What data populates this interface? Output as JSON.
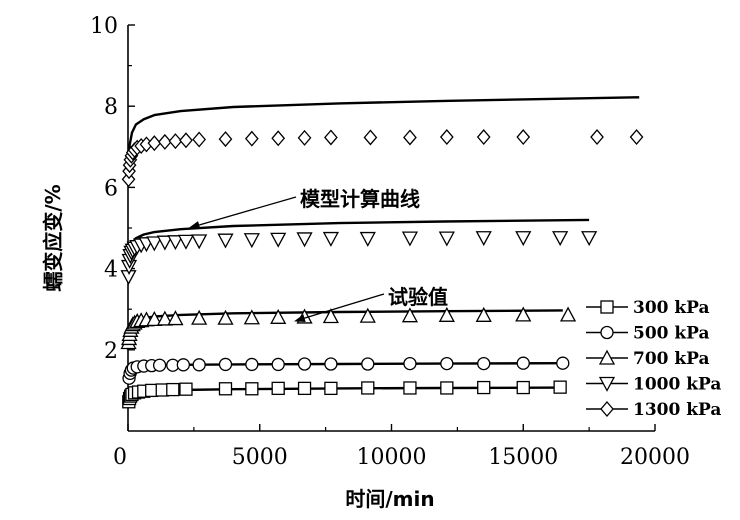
{
  "chart_data": {
    "type": "scatter",
    "xlabel": "时间/min",
    "ylabel": "蠕变应变/%",
    "xlim": [
      0,
      20000
    ],
    "ylim": [
      0,
      10
    ],
    "x_ticks": [
      0,
      5000,
      10000,
      15000,
      20000
    ],
    "y_ticks": [
      2,
      4,
      6,
      8,
      10
    ],
    "x_tick_labels": [
      "0",
      "5000",
      "10000",
      "15000",
      "20000"
    ],
    "y_tick_labels": [
      "2",
      "4",
      "6",
      "8",
      "10"
    ],
    "grid": false,
    "legend_position": "lower-right",
    "series": [
      {
        "name": "300 kPa",
        "marker": "square",
        "points": [
          [
            30,
            0.72
          ],
          [
            60,
            0.8
          ],
          [
            100,
            0.86
          ],
          [
            150,
            0.9
          ],
          [
            250,
            0.94
          ],
          [
            400,
            0.96
          ],
          [
            600,
            0.98
          ],
          [
            900,
            1.0
          ],
          [
            1300,
            1.01
          ],
          [
            1700,
            1.02
          ],
          [
            2200,
            1.03
          ],
          [
            3700,
            1.04
          ],
          [
            4700,
            1.04
          ],
          [
            5700,
            1.05
          ],
          [
            6700,
            1.05
          ],
          [
            7700,
            1.05
          ],
          [
            9100,
            1.06
          ],
          [
            10700,
            1.06
          ],
          [
            12100,
            1.06
          ],
          [
            13500,
            1.07
          ],
          [
            15000,
            1.07
          ],
          [
            16400,
            1.08
          ]
        ],
        "model": [
          [
            0,
            0.6
          ],
          [
            50,
            0.78
          ],
          [
            150,
            0.87
          ],
          [
            300,
            0.93
          ],
          [
            600,
            0.97
          ],
          [
            1000,
            0.99
          ],
          [
            2000,
            1.01
          ],
          [
            4000,
            1.03
          ],
          [
            8000,
            1.05
          ],
          [
            12000,
            1.06
          ],
          [
            16600,
            1.07
          ]
        ]
      },
      {
        "name": "500 kPa",
        "marker": "circle",
        "points": [
          [
            40,
            1.3
          ],
          [
            80,
            1.42
          ],
          [
            130,
            1.5
          ],
          [
            200,
            1.55
          ],
          [
            350,
            1.58
          ],
          [
            600,
            1.6
          ],
          [
            900,
            1.61
          ],
          [
            1200,
            1.62
          ],
          [
            1700,
            1.62
          ],
          [
            2100,
            1.63
          ],
          [
            2700,
            1.63
          ],
          [
            3700,
            1.64
          ],
          [
            4700,
            1.64
          ],
          [
            5700,
            1.64
          ],
          [
            6700,
            1.65
          ],
          [
            7700,
            1.65
          ],
          [
            9100,
            1.65
          ],
          [
            10700,
            1.66
          ],
          [
            12100,
            1.66
          ],
          [
            13500,
            1.66
          ],
          [
            15000,
            1.67
          ],
          [
            16500,
            1.67
          ]
        ],
        "model": [
          [
            0,
            1.2
          ],
          [
            50,
            1.42
          ],
          [
            150,
            1.52
          ],
          [
            300,
            1.57
          ],
          [
            600,
            1.6
          ],
          [
            1000,
            1.62
          ],
          [
            2000,
            1.63
          ],
          [
            4000,
            1.64
          ],
          [
            8000,
            1.65
          ],
          [
            12000,
            1.66
          ],
          [
            16500,
            1.67
          ]
        ]
      },
      {
        "name": "700 kPa",
        "marker": "triangle-up",
        "points": [
          [
            20,
            2.18
          ],
          [
            40,
            2.28
          ],
          [
            60,
            2.38
          ],
          [
            90,
            2.48
          ],
          [
            130,
            2.56
          ],
          [
            180,
            2.62
          ],
          [
            250,
            2.66
          ],
          [
            350,
            2.7
          ],
          [
            500,
            2.72
          ],
          [
            700,
            2.74
          ],
          [
            1000,
            2.75
          ],
          [
            1400,
            2.76
          ],
          [
            1800,
            2.77
          ],
          [
            2700,
            2.78
          ],
          [
            3700,
            2.78
          ],
          [
            4700,
            2.79
          ],
          [
            5700,
            2.8
          ],
          [
            6700,
            2.81
          ],
          [
            7700,
            2.82
          ],
          [
            9100,
            2.83
          ],
          [
            10700,
            2.84
          ],
          [
            12100,
            2.85
          ],
          [
            13500,
            2.85
          ],
          [
            15000,
            2.86
          ],
          [
            16700,
            2.86
          ]
        ],
        "model": [
          [
            0,
            2.0
          ],
          [
            50,
            2.45
          ],
          [
            150,
            2.62
          ],
          [
            300,
            2.72
          ],
          [
            600,
            2.78
          ],
          [
            1000,
            2.82
          ],
          [
            2000,
            2.86
          ],
          [
            4000,
            2.9
          ],
          [
            8000,
            2.93
          ],
          [
            12000,
            2.95
          ],
          [
            16500,
            2.97
          ]
        ]
      },
      {
        "name": "1000 kPa",
        "marker": "triangle-down",
        "points": [
          [
            20,
            3.8
          ],
          [
            40,
            4.05
          ],
          [
            60,
            4.2
          ],
          [
            90,
            4.32
          ],
          [
            130,
            4.4
          ],
          [
            180,
            4.45
          ],
          [
            250,
            4.5
          ],
          [
            350,
            4.54
          ],
          [
            500,
            4.58
          ],
          [
            700,
            4.61
          ],
          [
            1000,
            4.63
          ],
          [
            1400,
            4.65
          ],
          [
            1800,
            4.66
          ],
          [
            2200,
            4.67
          ],
          [
            2700,
            4.68
          ],
          [
            3700,
            4.7
          ],
          [
            4700,
            4.71
          ],
          [
            5700,
            4.72
          ],
          [
            6700,
            4.73
          ],
          [
            7700,
            4.74
          ],
          [
            9100,
            4.74
          ],
          [
            10700,
            4.75
          ],
          [
            12100,
            4.75
          ],
          [
            13500,
            4.76
          ],
          [
            15000,
            4.76
          ],
          [
            16400,
            4.76
          ],
          [
            17500,
            4.76
          ]
        ],
        "model": [
          [
            0,
            3.9
          ],
          [
            50,
            4.4
          ],
          [
            150,
            4.62
          ],
          [
            300,
            4.75
          ],
          [
            600,
            4.84
          ],
          [
            1000,
            4.9
          ],
          [
            2000,
            4.97
          ],
          [
            4000,
            5.05
          ],
          [
            8000,
            5.12
          ],
          [
            12000,
            5.16
          ],
          [
            17500,
            5.2
          ]
        ]
      },
      {
        "name": "1300 kPa",
        "marker": "diamond",
        "points": [
          [
            20,
            6.2
          ],
          [
            40,
            6.4
          ],
          [
            60,
            6.55
          ],
          [
            90,
            6.68
          ],
          [
            130,
            6.78
          ],
          [
            180,
            6.86
          ],
          [
            250,
            6.92
          ],
          [
            350,
            6.98
          ],
          [
            500,
            7.02
          ],
          [
            700,
            7.06
          ],
          [
            1000,
            7.09
          ],
          [
            1400,
            7.12
          ],
          [
            1800,
            7.14
          ],
          [
            2200,
            7.16
          ],
          [
            2700,
            7.18
          ],
          [
            3700,
            7.19
          ],
          [
            4700,
            7.2
          ],
          [
            5700,
            7.21
          ],
          [
            6700,
            7.22
          ],
          [
            7700,
            7.23
          ],
          [
            9200,
            7.23
          ],
          [
            10700,
            7.23
          ],
          [
            12100,
            7.24
          ],
          [
            13500,
            7.24
          ],
          [
            15000,
            7.24
          ],
          [
            17800,
            7.24
          ],
          [
            19300,
            7.24
          ]
        ],
        "model": [
          [
            0,
            6.3
          ],
          [
            50,
            7.0
          ],
          [
            150,
            7.35
          ],
          [
            300,
            7.55
          ],
          [
            600,
            7.68
          ],
          [
            1000,
            7.78
          ],
          [
            2000,
            7.88
          ],
          [
            4000,
            7.98
          ],
          [
            8000,
            8.07
          ],
          [
            12000,
            8.13
          ],
          [
            16000,
            8.18
          ],
          [
            19400,
            8.22
          ]
        ]
      }
    ],
    "annotations": [
      {
        "text": "模型计算曲线",
        "target": [
          2300,
          5.0
        ]
      },
      {
        "text": "试验值",
        "target": [
          6300,
          2.7
        ]
      }
    ]
  }
}
